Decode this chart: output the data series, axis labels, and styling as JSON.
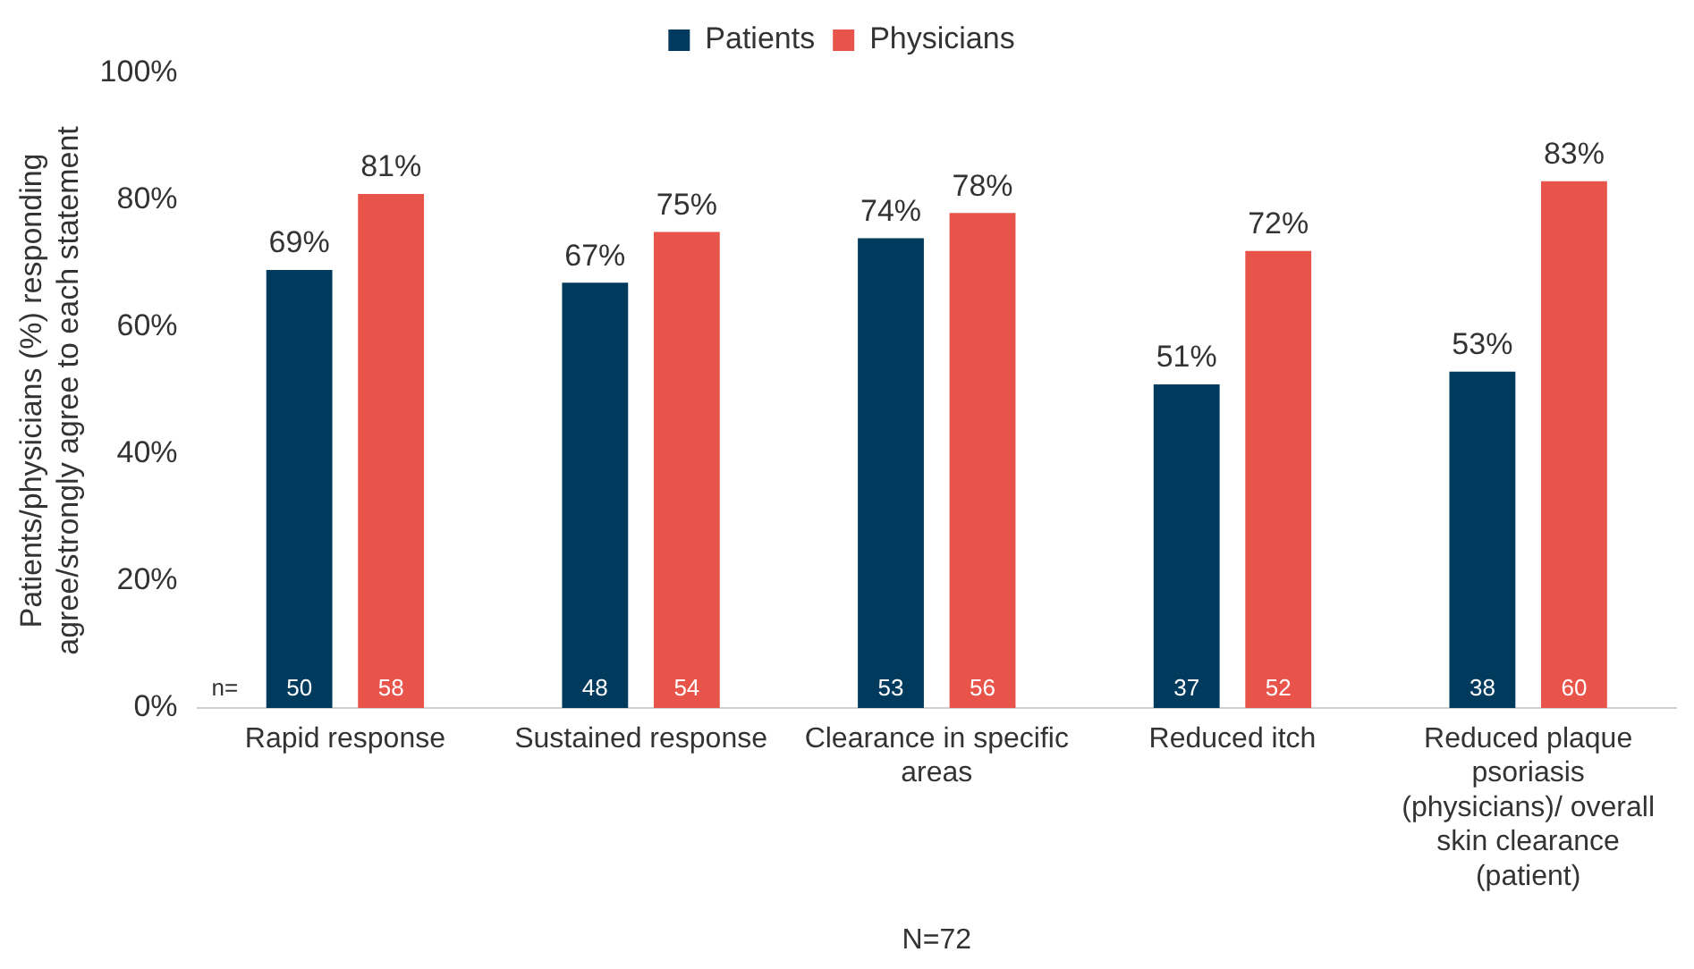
{
  "chart_data": {
    "type": "bar",
    "ylabel": "Patients/physicians (%) responding agree/strongly agree to each statement",
    "categories": [
      "Rapid response",
      "Sustained response",
      "Clearance in specific areas",
      "Reduced itch",
      "Reduced plaque psoriasis (physicians)/ overall skin clearance (patient)"
    ],
    "series": [
      {
        "name": "Patients",
        "color": "#003a5d",
        "values": [
          69,
          67,
          74,
          51,
          53
        ],
        "value_labels": [
          "69%",
          "67%",
          "74%",
          "51%",
          "53%"
        ]
      },
      {
        "name": "Physicians",
        "color": "#e8534a",
        "values": [
          81,
          75,
          78,
          72,
          83
        ],
        "value_labels": [
          "81%",
          "75%",
          "78%",
          "72%",
          "83%"
        ]
      }
    ],
    "ylim": [
      0,
      100
    ],
    "yticks": [
      {
        "value": 0,
        "label": "0%"
      },
      {
        "value": 20,
        "label": "20%"
      },
      {
        "value": 40,
        "label": "40%"
      },
      {
        "value": 60,
        "label": "60%"
      },
      {
        "value": 80,
        "label": "80%"
      },
      {
        "value": 100,
        "label": "100%"
      }
    ],
    "grid": false,
    "legend": "top",
    "annotations": [
      "n=",
      "50",
      "58",
      "48",
      "54",
      "53",
      "56",
      "37",
      "52",
      "38",
      "60",
      "N=72"
    ]
  }
}
